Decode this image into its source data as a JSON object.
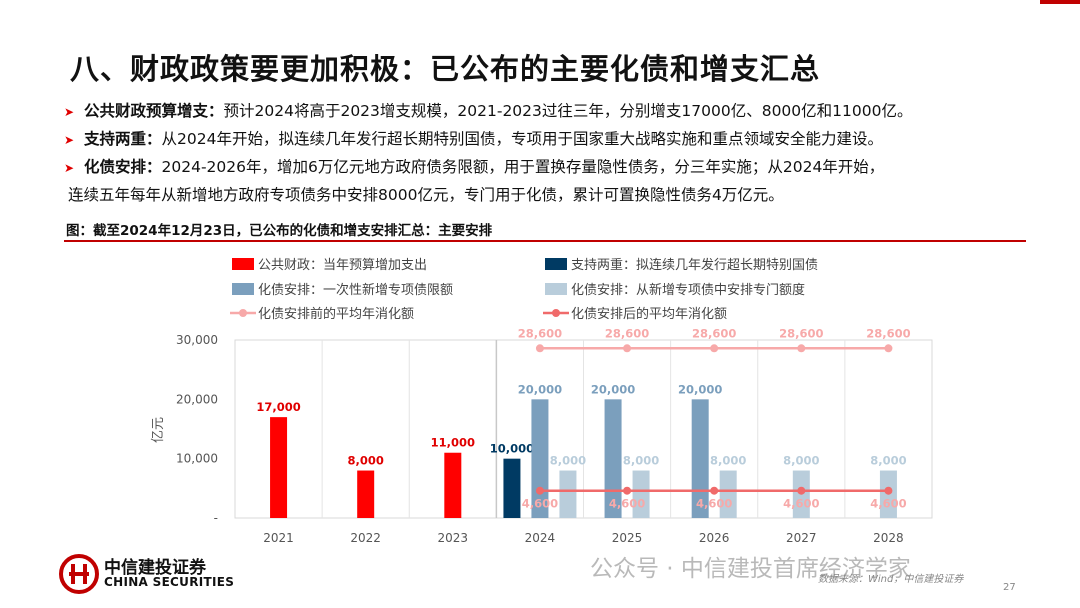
{
  "title": "八、财政政策要更加积极：已公布的主要化债和增支汇总",
  "bullets": [
    {
      "label": "公共财政预算增支：",
      "text": "预计2024将高于2023增支规模，2021-2023过往三年，分别增支17000亿、8000亿和11000亿。"
    },
    {
      "label": "支持两重：",
      "text": "从2024年开始，拟连续几年发行超长期特别国债，专项用于国家重大战略实施和重点领域安全能力建设。"
    },
    {
      "label": "化债安排：",
      "text": "2024-2026年，增加6万亿元地方政府债务限额，用于置换存量隐性债务，分三年实施；从2024年开始，",
      "continuation": "连续五年每年从新增地方政府专项债务中安排8000亿元，专门用于化债，累计可置换隐性债务4万亿元。"
    }
  ],
  "figure_caption": "图：截至2024年12月23日，已公布的化债和增支安排汇总：主要安排",
  "chart_data": {
    "type": "bar",
    "categories": [
      "2021",
      "2022",
      "2023",
      "2024",
      "2025",
      "2026",
      "2027",
      "2028"
    ],
    "ylabel": "亿元",
    "ylim": [
      0,
      30000
    ],
    "yticks": [
      0,
      10000,
      20000,
      30000
    ],
    "ytick_labels": [
      "-",
      "10,000",
      "20,000",
      "30,000"
    ],
    "grid": false,
    "legend_position": "top",
    "series": [
      {
        "name": "公共财政：当年预算增加支出",
        "type": "bar",
        "color": "#ff0000",
        "label_color": "#e00000",
        "values": [
          17000,
          8000,
          11000,
          null,
          null,
          null,
          null,
          null
        ],
        "labels": [
          "17,000",
          "8,000",
          "11,000",
          "",
          "",
          "",
          "",
          ""
        ]
      },
      {
        "name": "支持两重：拟连续几年发行超长期特别国债",
        "type": "bar",
        "color": "#003a63",
        "label_color": "#003a63",
        "values": [
          null,
          null,
          null,
          10000,
          null,
          null,
          null,
          null
        ],
        "labels": [
          "",
          "",
          "",
          "10,000",
          "",
          "",
          "",
          ""
        ]
      },
      {
        "name": "化债安排：一次性新增专项债限额",
        "type": "bar",
        "color": "#7b9fbd",
        "label_color": "#7b9fbd",
        "values": [
          null,
          null,
          null,
          20000,
          20000,
          20000,
          null,
          null
        ],
        "labels": [
          "",
          "",
          "",
          "20,000",
          "20,000",
          "20,000",
          "",
          ""
        ]
      },
      {
        "name": "化债安排：从新增专项债中安排专门额度",
        "type": "bar",
        "color": "#b9cddb",
        "label_color": "#b9cddb",
        "values": [
          null,
          null,
          null,
          8000,
          8000,
          8000,
          8000,
          8000
        ],
        "labels": [
          "",
          "",
          "",
          "8,000",
          "8,000",
          "8,000",
          "8,000",
          "8,000"
        ]
      },
      {
        "name": "化债安排前的平均年消化额",
        "type": "line",
        "color": "#f7a9a9",
        "label_color": "#f7a9a9",
        "values": [
          null,
          null,
          null,
          28600,
          28600,
          28600,
          28600,
          28600
        ],
        "labels": [
          "",
          "",
          "",
          "28,600",
          "28,600",
          "28,600",
          "28,600",
          "28,600"
        ]
      },
      {
        "name": "化债安排后的平均年消化额",
        "type": "line",
        "color": "#f06a6a",
        "label_color": "#f7a9a9",
        "values": [
          null,
          null,
          null,
          4600,
          4600,
          4600,
          4600,
          4600
        ],
        "labels": [
          "",
          "",
          "",
          "4,600",
          "4,600",
          "4,600",
          "4,600",
          "4,600"
        ]
      }
    ],
    "divider_after_category": "2023"
  },
  "logo": {
    "cn": "中信建投证券",
    "en": "CHINA SECURITIES",
    "color": "#c00000"
  },
  "source": "数据来源：Wind，中信建投证券",
  "watermark": "公众号 · 中信建投首席经济学家",
  "page_number": "27"
}
